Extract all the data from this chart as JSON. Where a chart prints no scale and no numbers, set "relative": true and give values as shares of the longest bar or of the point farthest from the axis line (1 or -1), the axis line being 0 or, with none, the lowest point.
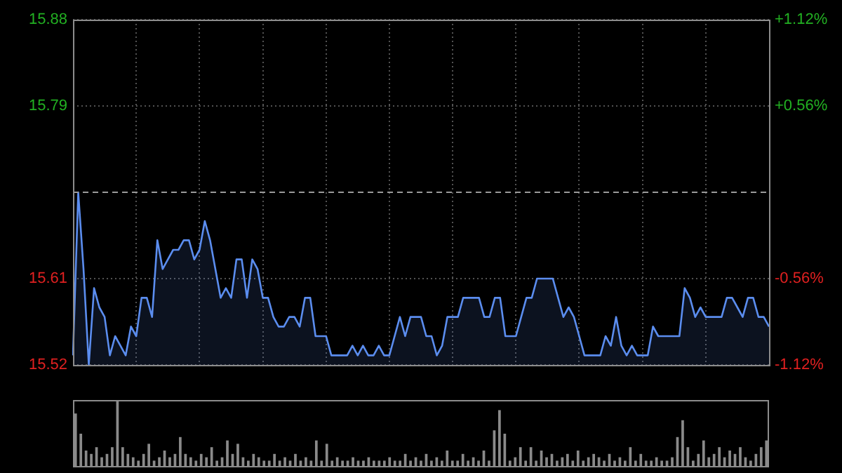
{
  "chart_data": [
    {
      "type": "area",
      "categories": [
        null,
        null,
        null,
        null,
        null,
        null,
        null,
        null,
        null,
        null,
        null,
        null,
        null,
        null,
        null,
        null,
        null,
        null,
        null,
        null,
        null,
        null,
        null,
        null,
        null,
        null,
        null,
        null,
        null,
        null,
        null,
        null,
        null,
        null,
        null,
        null,
        null,
        null,
        null,
        null,
        null,
        null,
        null,
        null,
        null,
        null,
        null,
        null,
        null,
        null,
        null,
        null,
        null,
        null,
        null,
        null,
        null,
        null,
        null,
        null,
        null,
        null,
        null,
        null,
        null,
        null,
        null,
        null,
        null,
        null,
        null,
        null,
        null,
        null,
        null,
        null,
        null,
        null,
        null,
        null,
        null,
        null,
        null,
        null,
        null,
        null,
        null,
        null,
        null,
        null,
        null,
        null,
        null,
        null,
        null,
        null,
        null,
        null,
        null,
        null,
        null,
        null,
        null,
        null,
        null,
        null,
        null,
        null,
        null,
        null,
        null,
        null,
        null,
        null,
        null,
        null,
        null,
        null,
        null,
        null,
        null,
        null,
        null,
        null,
        null,
        null,
        null,
        null,
        null,
        null,
        null,
        null,
        null
      ],
      "series": [
        {
          "color": "#5b8def",
          "values": [
            15.53,
            15.7,
            15.62,
            15.52,
            15.6,
            15.58,
            15.57,
            15.53,
            15.55,
            15.54,
            15.53,
            15.56,
            15.55,
            15.59,
            15.59,
            15.57,
            15.65,
            15.62,
            15.63,
            15.64,
            15.64,
            15.65,
            15.65,
            15.63,
            15.64,
            15.67,
            15.65,
            15.62,
            15.59,
            15.6,
            15.59,
            15.63,
            15.63,
            15.59,
            15.63,
            15.62,
            15.59,
            15.59,
            15.57,
            15.56,
            15.56,
            15.57,
            15.57,
            15.56,
            15.59,
            15.59,
            15.55,
            15.55,
            15.55,
            15.53,
            15.53,
            15.53,
            15.53,
            15.54,
            15.53,
            15.54,
            15.53,
            15.53,
            15.54,
            15.53,
            15.53,
            15.55,
            15.57,
            15.55,
            15.57,
            15.57,
            15.57,
            15.55,
            15.55,
            15.53,
            15.54,
            15.57,
            15.57,
            15.57,
            15.59,
            15.59,
            15.59,
            15.59,
            15.57,
            15.57,
            15.59,
            15.59,
            15.55,
            15.55,
            15.55,
            15.57,
            15.59,
            15.59,
            15.61,
            15.61,
            15.61,
            15.61,
            15.59,
            15.57,
            15.58,
            15.57,
            15.55,
            15.53,
            15.53,
            15.53,
            15.53,
            15.55,
            15.54,
            15.57,
            15.54,
            15.53,
            15.54,
            15.53,
            15.53,
            15.53,
            15.56,
            15.55,
            15.55,
            15.55,
            15.55,
            15.55,
            15.6,
            15.59,
            15.57,
            15.58,
            15.57,
            15.57,
            15.57,
            15.57,
            15.59,
            15.59,
            15.58,
            15.57,
            15.59,
            15.59,
            15.57,
            15.57,
            15.56
          ]
        }
      ],
      "ylim": [
        15.52,
        15.88
      ],
      "yticks": [
        15.52,
        15.61,
        15.79,
        15.88
      ],
      "y2lim": [
        -1.12,
        1.12
      ],
      "y2ticks": [
        {
          "value": -1.12,
          "label": "-1.12%"
        },
        {
          "value": -0.56,
          "label": "-0.56%"
        },
        {
          "value": 0.56,
          "label": "+0.56%"
        },
        {
          "value": 1.12,
          "label": "+1.12%"
        }
      ],
      "ref_lines": [
        {
          "axis": "y",
          "value": 15.7,
          "line_style": "dashed"
        }
      ],
      "grid": true,
      "tick_labels": "y"
    },
    {
      "type": "bar",
      "relative": true,
      "categories": [
        null,
        null,
        null,
        null,
        null,
        null,
        null,
        null,
        null,
        null,
        null,
        null,
        null,
        null,
        null,
        null,
        null,
        null,
        null,
        null,
        null,
        null,
        null,
        null,
        null,
        null,
        null,
        null,
        null,
        null,
        null,
        null,
        null,
        null,
        null,
        null,
        null,
        null,
        null,
        null,
        null,
        null,
        null,
        null,
        null,
        null,
        null,
        null,
        null,
        null,
        null,
        null,
        null,
        null,
        null,
        null,
        null,
        null,
        null,
        null,
        null,
        null,
        null,
        null,
        null,
        null,
        null,
        null,
        null,
        null,
        null,
        null,
        null,
        null,
        null,
        null,
        null,
        null,
        null,
        null,
        null,
        null,
        null,
        null,
        null,
        null,
        null,
        null,
        null,
        null,
        null,
        null,
        null,
        null,
        null,
        null,
        null,
        null,
        null,
        null,
        null,
        null,
        null,
        null,
        null,
        null,
        null,
        null,
        null,
        null,
        null,
        null,
        null,
        null,
        null,
        null,
        null,
        null,
        null,
        null,
        null,
        null,
        null,
        null,
        null,
        null,
        null,
        null,
        null,
        null,
        null,
        null,
        null
      ],
      "series": [
        {
          "color": "#8a8a8a",
          "values": [
            0.8,
            0.5,
            0.25,
            0.2,
            0.3,
            0.15,
            0.2,
            0.3,
            1,
            0.3,
            0.2,
            0.15,
            0.1,
            0.2,
            0.35,
            0.1,
            0.15,
            0.25,
            0.15,
            0.2,
            0.45,
            0.2,
            0.15,
            0.1,
            0.2,
            0.15,
            0.3,
            0.1,
            0.15,
            0.4,
            0.2,
            0.35,
            0.15,
            0.1,
            0.2,
            0.15,
            0.1,
            0.1,
            0.2,
            0.1,
            0.15,
            0.1,
            0.2,
            0.1,
            0.15,
            0.1,
            0.4,
            0.1,
            0.35,
            0.1,
            0.15,
            0.1,
            0.1,
            0.15,
            0.1,
            0.1,
            0.15,
            0.1,
            0.1,
            0.1,
            0.15,
            0.1,
            0.1,
            0.2,
            0.1,
            0.15,
            0.1,
            0.2,
            0.1,
            0.15,
            0.1,
            0.25,
            0.1,
            0.1,
            0.2,
            0.1,
            0.15,
            0.1,
            0.25,
            0.1,
            0.55,
            0.85,
            0.5,
            0.1,
            0.15,
            0.3,
            0.1,
            0.3,
            0.1,
            0.25,
            0.15,
            0.2,
            0.1,
            0.15,
            0.2,
            0.1,
            0.25,
            0.1,
            0.15,
            0.2,
            0.15,
            0.1,
            0.2,
            0.1,
            0.15,
            0.1,
            0.3,
            0.1,
            0.2,
            0.1,
            0.1,
            0.15,
            0.1,
            0.1,
            0.15,
            0.45,
            0.7,
            0.3,
            0.1,
            0.2,
            0.4,
            0.15,
            0.2,
            0.3,
            0.15,
            0.25,
            0.2,
            0.3,
            0.15,
            0.1,
            0.2,
            0.3,
            0.4
          ]
        }
      ],
      "tick_labels": false
    }
  ]
}
